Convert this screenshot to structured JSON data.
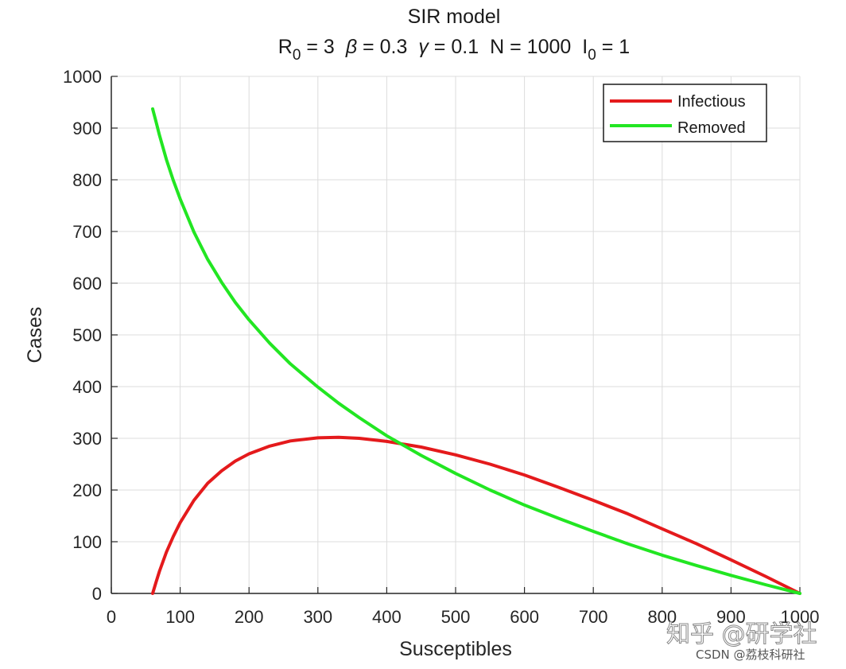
{
  "chart_data": {
    "type": "line",
    "title": "SIR model",
    "subtitle_parts": [
      {
        "text": "R",
        "sub": "0",
        "rest": " = 3"
      },
      {
        "text": "β",
        "rest": " = 0.3"
      },
      {
        "text": "γ",
        "rest": " = 0.1"
      },
      {
        "text": "N",
        "rest": " = 1000"
      },
      {
        "text": "I",
        "sub": "0",
        "rest": " = 1"
      }
    ],
    "xlabel": "Susceptibles",
    "ylabel": "Cases",
    "xlim": [
      0,
      1000
    ],
    "ylim": [
      0,
      1000
    ],
    "xticks": [
      0,
      100,
      200,
      300,
      400,
      500,
      600,
      700,
      800,
      900,
      1000
    ],
    "yticks": [
      0,
      100,
      200,
      300,
      400,
      500,
      600,
      700,
      800,
      900,
      1000
    ],
    "grid": true,
    "legend": "top-right",
    "series": [
      {
        "name": "Infectious",
        "color": "#e41a1c",
        "x": [
          60,
          65,
          70,
          80,
          90,
          100,
          120,
          140,
          160,
          180,
          200,
          230,
          260,
          300,
          330,
          360,
          400,
          450,
          500,
          550,
          600,
          650,
          700,
          750,
          800,
          850,
          900,
          950,
          1000
        ],
        "y": [
          0,
          22,
          43,
          80,
          110,
          137,
          180,
          213,
          237,
          256,
          270,
          285,
          295,
          301,
          302,
          300,
          294,
          283,
          268,
          250,
          229,
          205,
          180,
          154,
          125,
          96,
          65,
          33,
          0
        ]
      },
      {
        "name": "Removed",
        "color": "#22e622",
        "x": [
          60,
          65,
          70,
          80,
          90,
          100,
          120,
          140,
          160,
          180,
          200,
          230,
          260,
          300,
          330,
          360,
          400,
          450,
          500,
          550,
          600,
          650,
          700,
          750,
          800,
          850,
          900,
          950,
          1000
        ],
        "y": [
          937,
          912,
          886,
          839,
          799,
          763,
          699,
          646,
          602,
          563,
          529,
          484,
          444,
          399,
          368,
          340,
          305,
          267,
          232,
          200,
          171,
          145,
          120,
          96,
          74,
          54,
          35,
          17,
          0
        ]
      }
    ]
  },
  "watermark": {
    "main": "知乎 @研学社",
    "small": "CSDN @荔枝科研社"
  }
}
